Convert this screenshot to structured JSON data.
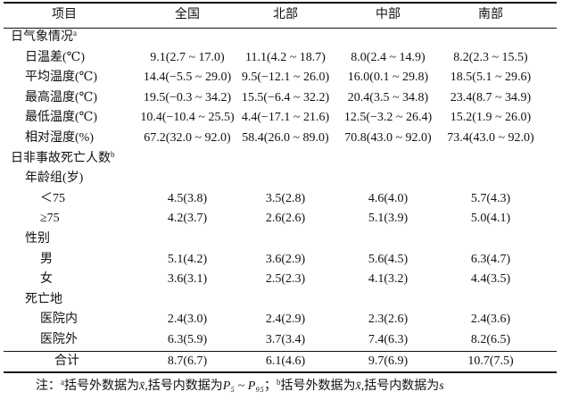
{
  "table": {
    "header": [
      "项目",
      "全国",
      "北部",
      "中部",
      "南部"
    ],
    "sections": [
      {
        "title": "日气象情况",
        "mark": "a",
        "rows": [
          {
            "label": "日温差(℃)",
            "values": [
              "9.1(2.7 ~ 17.0)",
              "11.1(4.2 ~ 18.7)",
              "8.0(2.4 ~ 14.9)",
              "8.2(2.3 ~ 15.5)"
            ]
          },
          {
            "label": "平均温度(℃)",
            "values": [
              "14.4(−5.5 ~ 29.0)",
              "9.5(−12.1 ~ 26.0)",
              "16.0(0.1 ~ 29.8)",
              "18.5(5.1 ~ 29.6)"
            ]
          },
          {
            "label": "最高温度(℃)",
            "values": [
              "19.5(−0.3 ~ 34.2)",
              "15.5(−6.4 ~ 32.2)",
              "20.4(3.5 ~ 34.8)",
              "23.4(8.7 ~ 34.9)"
            ]
          },
          {
            "label": "最低温度(℃)",
            "values": [
              "10.4(−10.4 ~ 25.5)",
              "4.4(−17.1 ~ 21.6)",
              "12.5(−3.2 ~ 26.4)",
              "15.2(1.9 ~ 26.0)"
            ]
          },
          {
            "label": "相对湿度(%)",
            "values": [
              "67.2(32.0 ~ 92.0)",
              "58.4(26.0 ~ 89.0)",
              "70.8(43.0 ~ 92.0)",
              "73.4(43.0 ~ 92.0)"
            ]
          }
        ]
      },
      {
        "title": "日非事故死亡人数",
        "mark": "b",
        "groups": [
          {
            "title": "年龄组(岁)",
            "rows": [
              {
                "label": "＜75",
                "values": [
                  "4.5(3.8)",
                  "3.5(2.8)",
                  "4.6(4.0)",
                  "5.7(4.3)"
                ]
              },
              {
                "label": "≥75",
                "values": [
                  "4.2(3.7)",
                  "2.6(2.6)",
                  "5.1(3.9)",
                  "5.0(4.1)"
                ]
              }
            ]
          },
          {
            "title": "性别",
            "rows": [
              {
                "label": "男",
                "values": [
                  "5.1(4.2)",
                  "3.6(2.9)",
                  "5.6(4.5)",
                  "6.3(4.7)"
                ]
              },
              {
                "label": "女",
                "values": [
                  "3.6(3.1)",
                  "2.5(2.3)",
                  "4.1(3.2)",
                  "4.4(3.5)"
                ]
              }
            ]
          },
          {
            "title": "死亡地",
            "rows": [
              {
                "label": "医院内",
                "values": [
                  "2.4(3.0)",
                  "2.4(2.9)",
                  "2.3(2.6)",
                  "2.4(3.6)"
                ]
              },
              {
                "label": "医院外",
                "values": [
                  "6.3(5.9)",
                  "3.7(3.4)",
                  "7.4(6.3)",
                  "8.2(6.5)"
                ]
              }
            ]
          }
        ]
      }
    ],
    "total": {
      "label": "合计",
      "values": [
        "8.7(6.7)",
        "6.1(4.6)",
        "9.7(6.9)",
        "10.7(7.5)"
      ]
    }
  },
  "note": {
    "prefix": "注：",
    "items": [
      {
        "mark": "a",
        "text": "括号外数据为",
        "var1": "x̄",
        "text2": ",括号内数据为",
        "var2": "P₅ ~ P₉₅",
        "sep": "；"
      },
      {
        "mark": "b",
        "text": "括号外数据为",
        "var1": "x̄",
        "text2": ",括号内数据为",
        "var2": "s"
      }
    ]
  }
}
